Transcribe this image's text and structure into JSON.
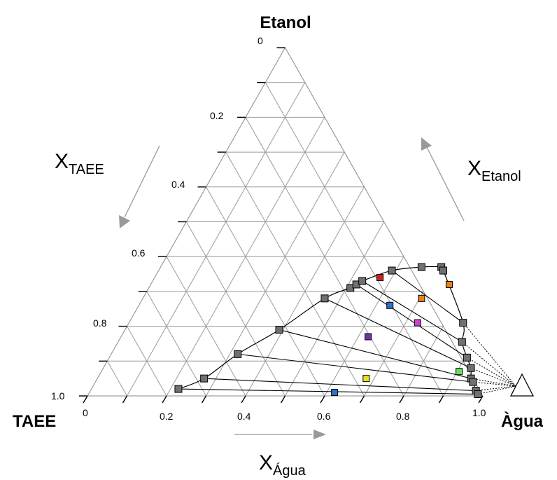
{
  "chart_data": {
    "type": "ternary",
    "vertices": {
      "top": "Etanol",
      "left": "TAEE",
      "right": "Àgua"
    },
    "axes": {
      "taee": {
        "main": "X",
        "sub": "TAEE",
        "ticks": [
          "0",
          "0.2",
          "0.4",
          "0.6",
          "0.8",
          "1.0"
        ]
      },
      "agua": {
        "main": "X",
        "sub": "Água",
        "ticks": [
          "0",
          "0.2",
          "0.4",
          "0.6",
          "0.8",
          "1.0"
        ]
      },
      "etanol": {
        "main": "X",
        "sub": "Etanol"
      }
    },
    "grid_step": 0.1,
    "binodal_left": [
      {
        "water": 0.22,
        "ethanol": 0.02
      },
      {
        "water": 0.27,
        "ethanol": 0.05
      },
      {
        "water": 0.32,
        "ethanol": 0.12
      },
      {
        "water": 0.39,
        "ethanol": 0.19
      },
      {
        "water": 0.46,
        "ethanol": 0.28
      },
      {
        "water": 0.51,
        "ethanol": 0.31
      },
      {
        "water": 0.52,
        "ethanol": 0.32
      },
      {
        "water": 0.53,
        "ethanol": 0.33
      },
      {
        "water": 0.59,
        "ethanol": 0.36
      },
      {
        "water": 0.66,
        "ethanol": 0.37
      },
      {
        "water": 0.71,
        "ethanol": 0.37
      },
      {
        "water": 0.72,
        "ethanol": 0.36
      }
    ],
    "binodal_right": [
      {
        "water": 0.72,
        "ethanol": 0.36
      },
      {
        "water": 0.845,
        "ethanol": 0.21
      },
      {
        "water": 0.87,
        "ethanol": 0.155
      },
      {
        "water": 0.905,
        "ethanol": 0.11
      },
      {
        "water": 0.93,
        "ethanol": 0.08
      },
      {
        "water": 0.945,
        "ethanol": 0.05
      },
      {
        "water": 0.955,
        "ethanol": 0.04
      },
      {
        "water": 0.975,
        "ethanol": 0.015
      },
      {
        "water": 0.985,
        "ethanol": 0.005
      }
    ],
    "tie_lines": [
      {
        "left": {
          "water": 0.22,
          "ethanol": 0.02
        },
        "right": {
          "water": 0.985,
          "ethanol": 0.005
        }
      },
      {
        "left": {
          "water": 0.27,
          "ethanol": 0.05
        },
        "right": {
          "water": 0.975,
          "ethanol": 0.015
        }
      },
      {
        "left": {
          "water": 0.32,
          "ethanol": 0.12
        },
        "right": {
          "water": 0.955,
          "ethanol": 0.04
        }
      },
      {
        "left": {
          "water": 0.39,
          "ethanol": 0.19
        },
        "right": {
          "water": 0.945,
          "ethanol": 0.05
        }
      },
      {
        "left": {
          "water": 0.46,
          "ethanol": 0.28
        },
        "right": {
          "water": 0.93,
          "ethanol": 0.08
        }
      },
      {
        "left": {
          "water": 0.52,
          "ethanol": 0.32
        },
        "right": {
          "water": 0.905,
          "ethanol": 0.11
        }
      },
      {
        "left": {
          "water": 0.53,
          "ethanol": 0.33
        },
        "right": {
          "water": 0.87,
          "ethanol": 0.155
        }
      },
      {
        "left": {
          "water": 0.59,
          "ethanol": 0.36
        },
        "right": {
          "water": 0.845,
          "ethanol": 0.21
        }
      }
    ],
    "feed_points": [
      {
        "water": 0.62,
        "ethanol": 0.01,
        "color": "#2f6fd0"
      },
      {
        "water": 0.68,
        "ethanol": 0.05,
        "color": "#e8e020"
      },
      {
        "water": 0.905,
        "ethanol": 0.07,
        "color": "#60e060"
      },
      {
        "water": 0.625,
        "ethanol": 0.17,
        "color": "#7030b0"
      },
      {
        "water": 0.73,
        "ethanol": 0.21,
        "color": "#d040d0"
      },
      {
        "water": 0.635,
        "ethanol": 0.26,
        "color": "#2f6fd0"
      },
      {
        "water": 0.705,
        "ethanol": 0.28,
        "color": "#e88020"
      },
      {
        "water": 0.57,
        "ethanol": 0.34,
        "color": "#d02020"
      },
      {
        "water": 0.755,
        "ethanol": 0.32,
        "color": "#e88020"
      }
    ]
  }
}
